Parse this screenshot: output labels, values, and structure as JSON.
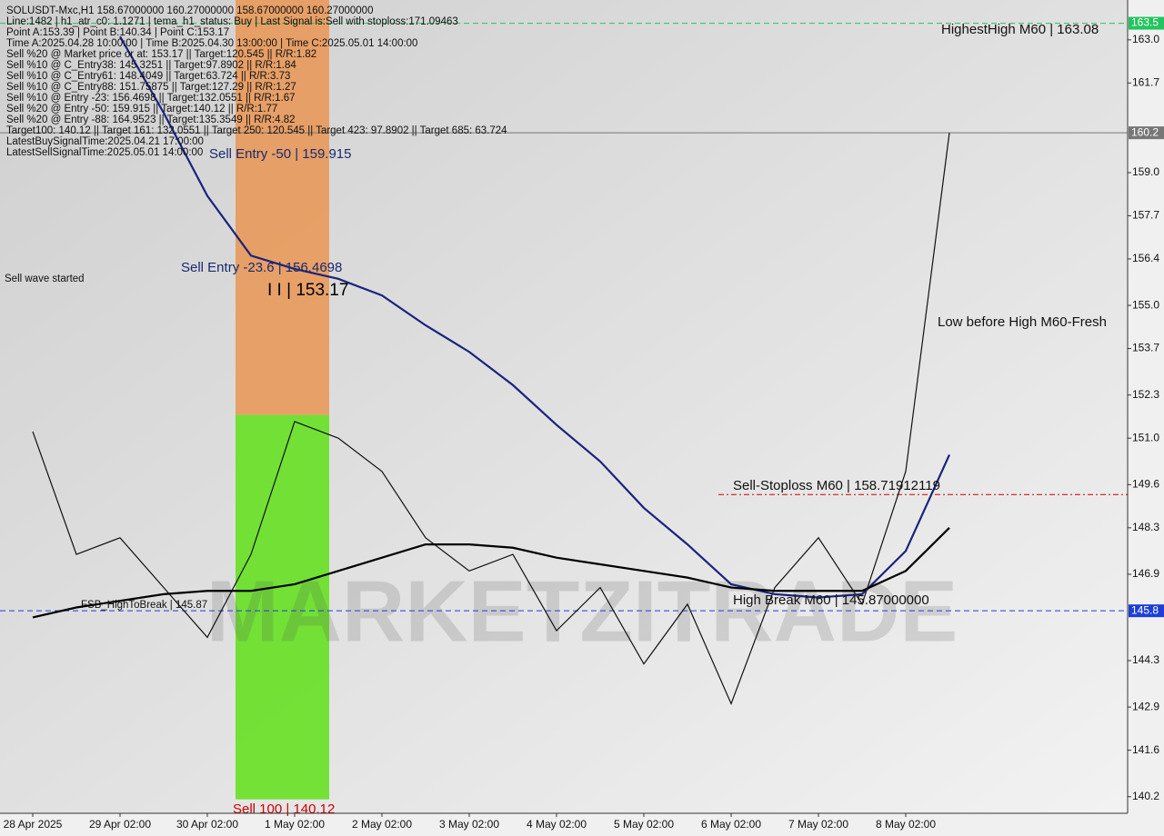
{
  "chart_data": {
    "type": "line",
    "title": "SOLUSDT-Mxc,H1  158.67000000 160.27000000 158.67000000 160.27000000",
    "info_lines": [
      "Line:1482 | h1_atr_c0: 1.1271 | tema_h1_status: Buy | Last Signal is:Sell with stoploss:171.09463",
      "Point A:153.39 | Point B:140.34 | Point C:153.17",
      "Time A:2025.04.28 10:00:00 | Time B:2025.04.30 13:00:00 | Time C:2025.05.01 14:00:00",
      "Sell %20 @ Market price or at: 153.17 || Target:120.545 || R/R:1.82",
      "Sell %10 @ C_Entry38: 145.3251 || Target:97.8902 || R/R:1.84",
      "Sell %10 @ C_Entry61: 148.4049 || Target:63.724 || R/R:3.73",
      "Sell %10 @ C_Entry88: 151.75875 || Target:127.29 || R/R:1.27",
      "Sell %10 @ Entry -23: 156.4698 || Target:132.0551 || R/R:1.67",
      "Sell %20 @ Entry -50: 159.915 || Target:140.12 || R/R:1.77",
      "Sell %20 @ Entry -88: 164.9523 || Target:135.3549 || R/R:4.82",
      "Target100: 140.12 || Target 161: 132.0551 || Target 250: 120.545 || Target 423: 97.8902 || Target 685: 63.724",
      "LatestBuySignalTime:2025.04.21 17:00:00",
      "LatestSellSignalTime:2025.05.01 14:00:00"
    ],
    "categories": [
      "28 Apr 2025",
      null,
      "29 Apr 02:00",
      null,
      "30 Apr 02:00",
      null,
      "1 May 02:00",
      null,
      "2 May 02:00",
      null,
      "3 May 02:00",
      null,
      "4 May 02:00",
      null,
      "5 May 02:00",
      null,
      "6 May 02:00",
      null,
      "7 May 02:00",
      null,
      "8 May 02:00",
      null
    ],
    "series": [
      {
        "color": "#111111",
        "values": [
          151.2,
          147.5,
          148.0,
          146.5,
          145.0,
          147.5,
          151.5,
          151.0,
          150.0,
          148.0,
          147.0,
          147.5,
          145.2,
          146.5,
          144.2,
          146.0,
          143.0,
          146.5,
          148.0,
          146.0,
          150.0,
          160.2
        ]
      },
      {
        "color": "#1a237e",
        "values": [
          null,
          null,
          163.1,
          160.8,
          158.3,
          156.5,
          156.1,
          155.8,
          155.3,
          154.4,
          153.6,
          152.6,
          151.4,
          150.3,
          148.9,
          147.8,
          146.6,
          146.3,
          146.2,
          146.3,
          147.6,
          150.5
        ]
      },
      {
        "color": "#000000",
        "values": [
          145.6,
          145.9,
          146.1,
          146.3,
          146.4,
          146.4,
          146.6,
          147.0,
          147.4,
          147.8,
          147.8,
          147.7,
          147.4,
          147.2,
          147.0,
          146.8,
          146.5,
          146.4,
          146.4,
          146.4,
          147.0,
          148.3
        ]
      }
    ],
    "ylim": [
      139.7,
      164.2
    ],
    "yticks": [
      {
        "value": 163,
        "label": "163.0"
      },
      161.7,
      {
        "value": 159,
        "label": "159.0"
      },
      157.7,
      156.4,
      {
        "value": 155,
        "label": "155.0"
      },
      153.7,
      152.3,
      {
        "value": 151,
        "label": "151.0"
      },
      149.6,
      148.3,
      146.9,
      144.3,
      142.9,
      141.6,
      140.2
    ],
    "levels": [
      {
        "value": 163.5,
        "label": "163.5",
        "color": "#22c55e"
      },
      {
        "value": 160.2,
        "label": "160.2",
        "color": "#777777"
      },
      {
        "value": 145.8,
        "label": "145.8",
        "color": "#1d3fd8"
      },
      {
        "value": 149.3,
        "color": "#cc0000"
      }
    ],
    "zones": [
      {
        "from": 151.7,
        "to": 164.2,
        "color": "#e8995a"
      },
      {
        "from": 140.12,
        "to": 151.7,
        "color": "#66e022"
      }
    ],
    "annotations": [
      "HighestHigh   M60 | 163.08",
      "Low before High   M60-Fresh",
      "Sell-Stoploss M60 | 158.71912119",
      "High Break M60 | 145.87000000",
      "FSB_HighToBreak | 145.87",
      "Sell Entry -23.6 | 156.4698",
      "Sell Entry -50 | 159.915",
      "I I | 153.17",
      "Sell 100 | 140.12",
      "Sell wave started"
    ],
    "watermark": "MARKETZITRADE"
  }
}
